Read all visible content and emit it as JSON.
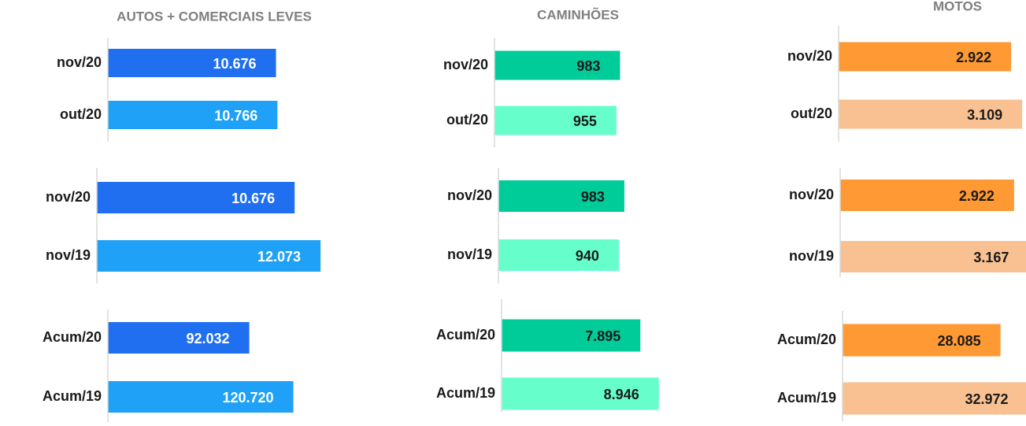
{
  "chart_data": [
    {
      "type": "bar",
      "title": "AUTOS + COMERCIAIS LEVES",
      "categories": [
        "nov/20",
        "out/20"
      ],
      "values": [
        10676,
        10766
      ],
      "value_labels": [
        "10.676",
        "10.766"
      ],
      "colors": [
        "#1f6ff0",
        "#1ea1f7"
      ],
      "label_color": "#ffffff",
      "xlim": [
        0,
        12000
      ]
    },
    {
      "type": "bar",
      "categories": [
        "nov/20",
        "nov/19"
      ],
      "values": [
        10676,
        12073
      ],
      "value_labels": [
        "10.676",
        "12.073"
      ],
      "colors": [
        "#1f6ff0",
        "#1ea1f7"
      ],
      "label_color": "#ffffff",
      "xlim": [
        0,
        10200
      ]
    },
    {
      "type": "bar",
      "categories": [
        "Acum/20",
        "Acum/19"
      ],
      "values": [
        92032,
        120720
      ],
      "value_labels": [
        "92.032",
        "120.720"
      ],
      "colors": [
        "#1f6ff0",
        "#1ea1f7"
      ],
      "label_color": "#ffffff",
      "xlim": [
        0,
        123000
      ]
    },
    {
      "type": "bar",
      "title": "CAMINHÕES",
      "categories": [
        "nov/20",
        "out/20"
      ],
      "values": [
        983,
        955
      ],
      "value_labels": [
        "983",
        "955"
      ],
      "colors": [
        "#00cc99",
        "#66ffcc"
      ],
      "label_color": "#1a1a1a",
      "xlim": [
        0,
        1480
      ]
    },
    {
      "type": "bar",
      "categories": [
        "nov/20",
        "nov/19"
      ],
      "values": [
        983,
        940
      ],
      "value_labels": [
        "983",
        "940"
      ],
      "colors": [
        "#00cc99",
        "#66ffcc"
      ],
      "label_color": "#1a1a1a",
      "xlim": [
        0,
        1475
      ]
    },
    {
      "type": "bar",
      "categories": [
        "Acum/20",
        "Acum/19"
      ],
      "values": [
        7895,
        8946
      ],
      "value_labels": [
        "7.895",
        "8.946"
      ],
      "colors": [
        "#00cc99",
        "#66ffcc"
      ],
      "label_color": "#1a1a1a",
      "xlim": [
        0,
        10750
      ]
    },
    {
      "type": "bar",
      "title": "MOTOS",
      "categories": [
        "nov/20",
        "out/20"
      ],
      "values": [
        2922,
        3109
      ],
      "value_labels": [
        "2.922",
        "3.109"
      ],
      "colors": [
        "#ff9933",
        "#f9c191"
      ],
      "label_color": "#1a1a1a",
      "xlim": [
        0,
        3200
      ]
    },
    {
      "type": "bar",
      "categories": [
        "nov/20",
        "nov/19"
      ],
      "values": [
        2922,
        3167
      ],
      "value_labels": [
        "2.922",
        "3.167"
      ],
      "colors": [
        "#ff9933",
        "#f9c191"
      ],
      "label_color": "#1a1a1a",
      "xlim": [
        0,
        3175
      ]
    },
    {
      "type": "bar",
      "categories": [
        "Acum/20",
        "Acum/19"
      ],
      "values": [
        28085,
        32972
      ],
      "value_labels": [
        "28.085",
        "32.972"
      ],
      "colors": [
        "#ff9933",
        "#f9c191"
      ],
      "label_color": "#1a1a1a",
      "xlim": [
        0,
        33600
      ]
    }
  ]
}
